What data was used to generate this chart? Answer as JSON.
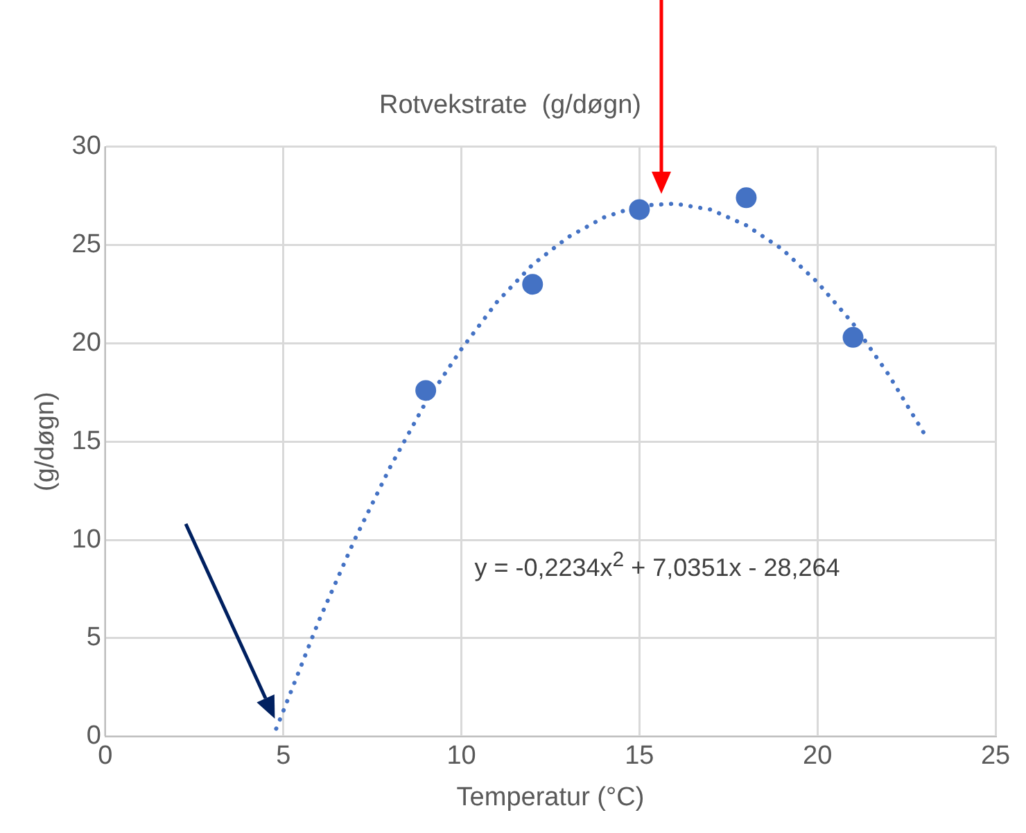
{
  "chart_data": {
    "type": "scatter",
    "title": "Rotvekstrate  (g/døgn)",
    "xlabel": "Temperatur (°C)",
    "ylabel": "(g/døgn)",
    "xlim": [
      0,
      25
    ],
    "xticks": [
      0,
      5,
      10,
      15,
      20,
      25
    ],
    "ylim": [
      0,
      30
    ],
    "yticks": [
      0,
      5,
      10,
      15,
      20,
      25,
      30
    ],
    "grid": true,
    "legend": false,
    "marker": "circle",
    "series": [
      {
        "color": "#4472c4",
        "x": [
          9,
          12,
          15,
          18,
          21
        ],
        "values": [
          17.6,
          23,
          26.8,
          27.4,
          20.3
        ]
      },
      {
        "type": "line",
        "color": "#4472c4",
        "line_style": "dotted",
        "marker": "none",
        "x": [
          4.8,
          5,
          6,
          7,
          8,
          9,
          10,
          11,
          12,
          13,
          14,
          15,
          16,
          17,
          18,
          19,
          20,
          21,
          22,
          23
        ],
        "values": [
          0.4,
          1.3,
          5.9,
          10,
          13.7,
          17,
          19.7,
          22.1,
          24,
          25.4,
          26.4,
          27,
          27.1,
          26.8,
          26,
          24.8,
          23.1,
          21,
          18.4,
          15.4
        ]
      }
    ],
    "annotations": [
      "y = -0,2234x$^{2}$ + 7,0351x - 28,264"
    ]
  }
}
